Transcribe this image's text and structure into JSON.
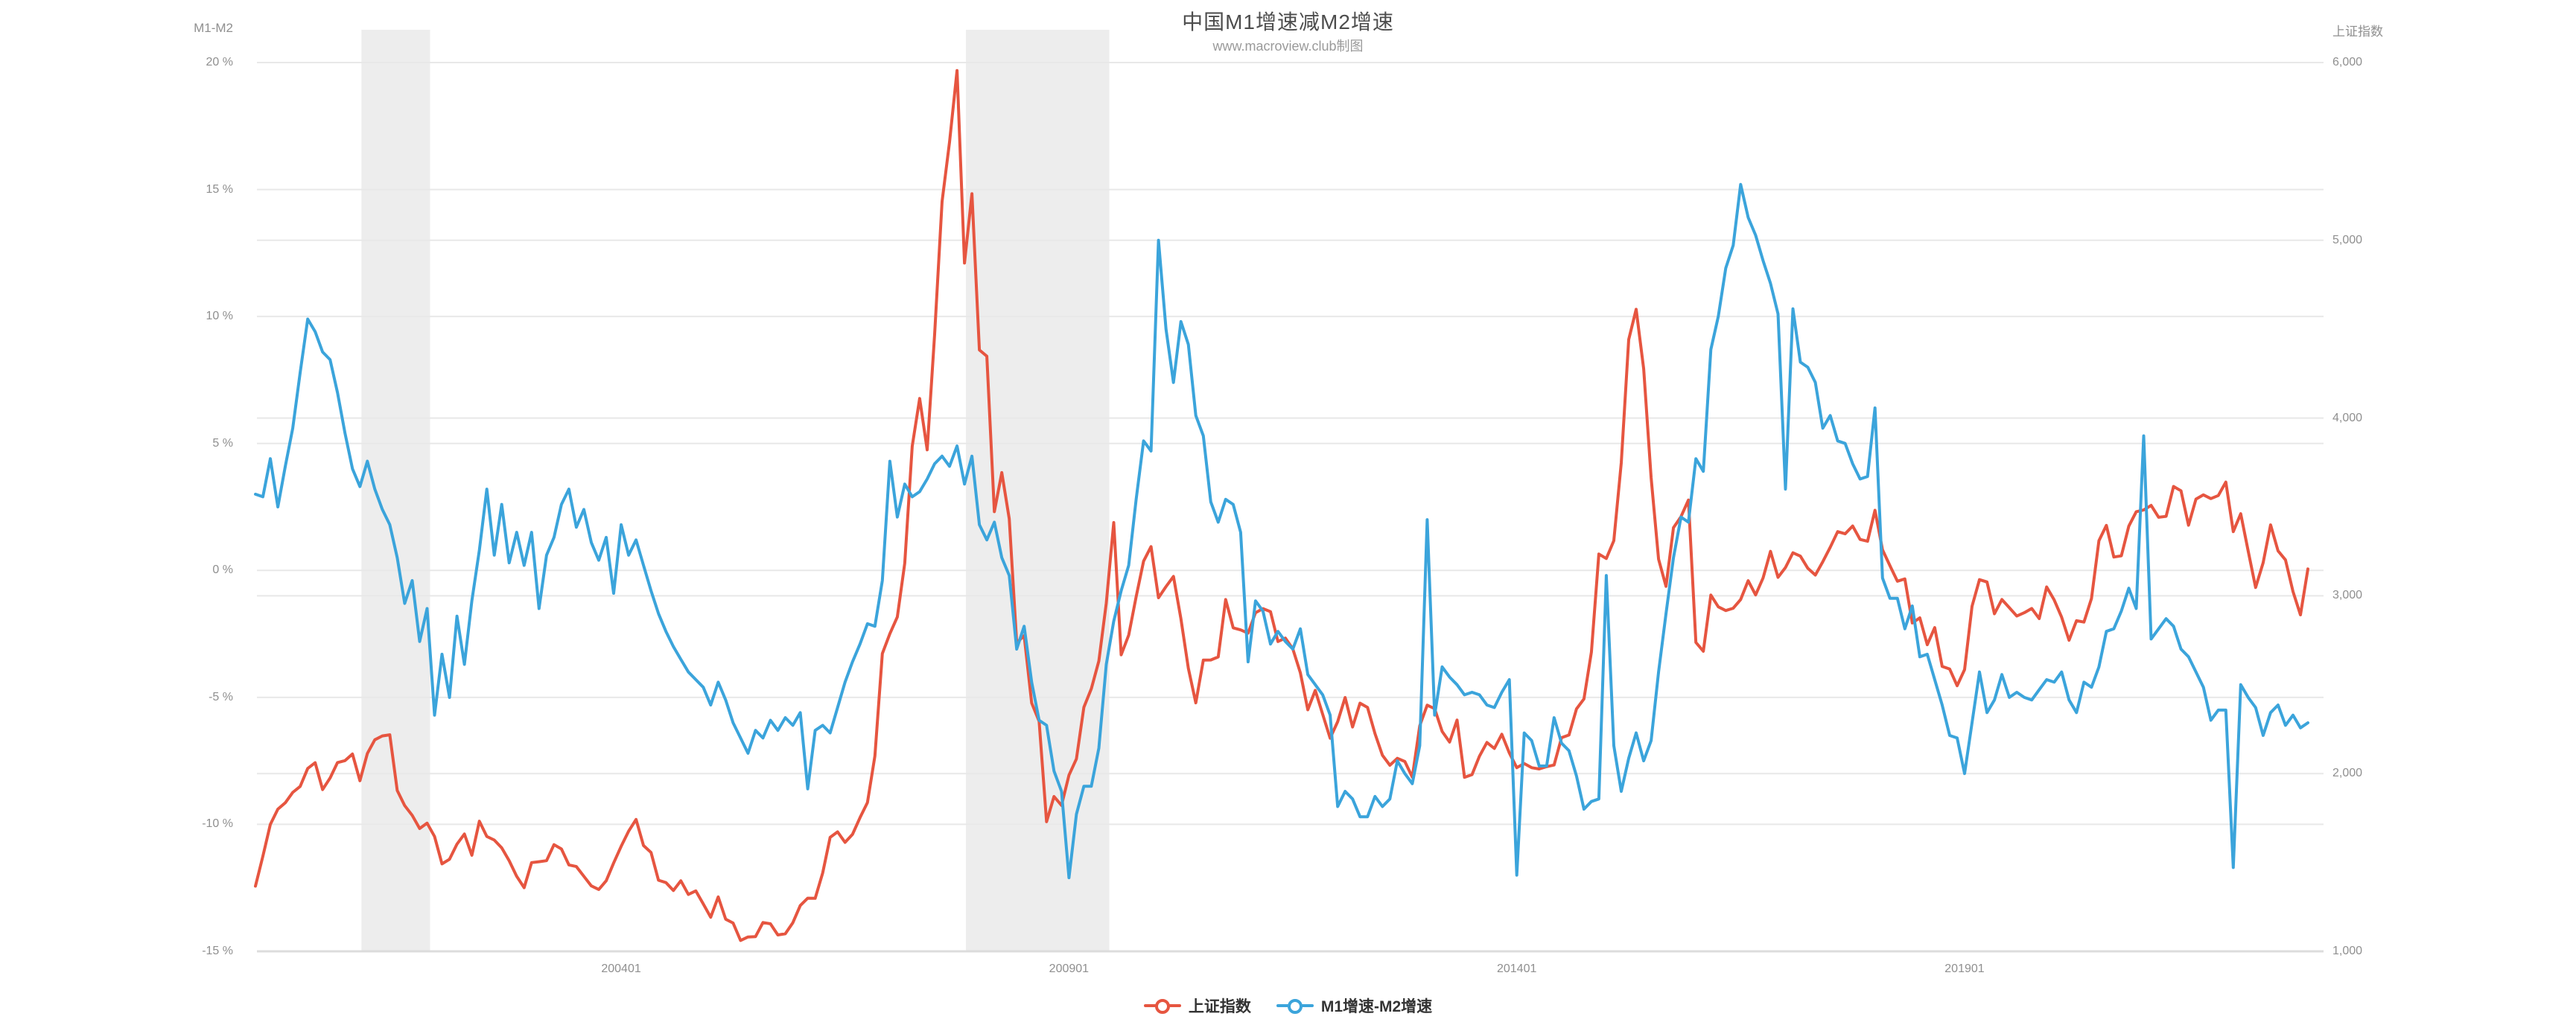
{
  "header": {
    "title": "中国M1增速减M2增速",
    "subtitle": "www.macroview.club制图"
  },
  "colors": {
    "sse_line": "#e65540",
    "m1m2_line": "#3ba4db",
    "gridline": "#e8e8e8",
    "recession_band": "#ededed",
    "x_axis_line": "#dcdcdc",
    "tick_text": "#8f8f8f",
    "title_text": "#4d4d4d",
    "subtitle_text": "#9a9a9a",
    "legend_text": "#333333"
  },
  "legend": [
    {
      "label": "上证指数",
      "color": "#e65540"
    },
    {
      "label": "M1增速-M2增速",
      "color": "#3ba4db"
    }
  ],
  "chart_data": {
    "type": "line",
    "title": "中国M1增速减M2增速",
    "subtitle": "www.macroview.club制图",
    "x_start": "1999-12",
    "frequency": "monthly",
    "grid": true,
    "legend_position": "bottom",
    "left_axis": {
      "title": "M1-M2",
      "unit": "%",
      "range": [
        -15,
        20
      ],
      "tick_values": [
        20,
        15,
        10,
        5,
        0,
        -5,
        -10,
        -15
      ],
      "tick_labels": [
        "20 %",
        "15 %",
        "10 %",
        "5 %",
        "0 %",
        "-5 %",
        "-10 %",
        "-15 %"
      ]
    },
    "right_axis": {
      "title": "上证指数",
      "range": [
        1000,
        6000
      ],
      "tick_values": [
        6000,
        5000,
        4000,
        3000,
        2000,
        1000
      ],
      "tick_labels": [
        "6,000",
        "5,000",
        "4,000",
        "3,000",
        "2,000",
        "1,000"
      ]
    },
    "x_axis": {
      "ticks": [
        {
          "label": "200401",
          "month_index": 49
        },
        {
          "label": "200901",
          "month_index": 109
        },
        {
          "label": "201401",
          "month_index": 169
        },
        {
          "label": "201901",
          "month_index": 229
        }
      ]
    },
    "recession_bands": [
      {
        "from": "2001-03",
        "to": "2001-11"
      },
      {
        "from": "2007-12",
        "to": "2009-06"
      }
    ],
    "series": [
      {
        "name": "上证指数",
        "axis": "right",
        "color": "#e65540",
        "values": [
          1367,
          1535,
          1714,
          1800,
          1836,
          1894,
          1928,
          2029,
          2061,
          1910,
          1975,
          2062,
          2073,
          2110,
          1960,
          2113,
          2190,
          2212,
          2218,
          1905,
          1820,
          1765,
          1691,
          1721,
          1646,
          1492,
          1518,
          1603,
          1660,
          1540,
          1732,
          1646,
          1626,
          1582,
          1510,
          1422,
          1358,
          1499,
          1504,
          1510,
          1600,
          1576,
          1486,
          1477,
          1422,
          1368,
          1348,
          1397,
          1497,
          1591,
          1676,
          1742,
          1595,
          1556,
          1400,
          1387,
          1342,
          1397,
          1320,
          1340,
          1267,
          1192,
          1306,
          1181,
          1159,
          1061,
          1081,
          1083,
          1162,
          1155,
          1092,
          1099,
          1161,
          1258,
          1299,
          1298,
          1441,
          1641,
          1672,
          1613,
          1658,
          1752,
          1837,
          2099,
          2675,
          2787,
          2881,
          3184,
          3841,
          4110,
          3821,
          4471,
          5218,
          5552,
          5955,
          4872,
          5262,
          4383,
          4348,
          3473,
          3693,
          3433,
          2736,
          2776,
          2397,
          2294,
          1729,
          1871,
          1821,
          1991,
          2083,
          2373,
          2477,
          2633,
          2959,
          3412,
          2668,
          2779,
          2995,
          3195,
          3277,
          2989,
          3052,
          3109,
          2871,
          2592,
          2398,
          2638,
          2639,
          2656,
          2979,
          2820,
          2808,
          2790,
          2905,
          2928,
          2911,
          2743,
          2762,
          2701,
          2567,
          2359,
          2468,
          2333,
          2199,
          2292,
          2428,
          2262,
          2396,
          2372,
          2225,
          2103,
          2047,
          2086,
          2068,
          1980,
          2269,
          2385,
          2365,
          2237,
          2177,
          2301,
          1979,
          1994,
          2098,
          2175,
          2141,
          2221,
          2116,
          2033,
          2056,
          2033,
          2026,
          2039,
          2048,
          2202,
          2217,
          2364,
          2420,
          2683,
          3235,
          3210,
          3310,
          3748,
          4442,
          4612,
          4277,
          3664,
          3206,
          3053,
          3383,
          3445,
          3539,
          2738,
          2688,
          3004,
          2938,
          2917,
          2930,
          2979,
          3085,
          3005,
          3100,
          3250,
          3104,
          3159,
          3242,
          3223,
          3155,
          3117,
          3192,
          3273,
          3361,
          3349,
          3393,
          3317,
          3307,
          3481,
          3259,
          3169,
          3082,
          3095,
          2847,
          2876,
          2725,
          2821,
          2603,
          2588,
          2494,
          2585,
          2941,
          3091,
          3078,
          2899,
          2979,
          2933,
          2886,
          2905,
          2929,
          2872,
          3050,
          2977,
          2880,
          2750,
          2860,
          2852,
          2985,
          3310,
          3396,
          3218,
          3225,
          3392,
          3473,
          3483,
          3509,
          3442,
          3447,
          3615,
          3591,
          3397,
          3544,
          3568,
          3547,
          3564,
          3640,
          3361,
          3462,
          3252,
          3047,
          3186,
          3399,
          3253,
          3202,
          3024,
          2893,
          3151
        ]
      },
      {
        "name": "M1增速-M2增速",
        "axis": "left",
        "color": "#3ba4db",
        "values": [
          3.0,
          2.9,
          4.4,
          2.5,
          4.1,
          5.6,
          7.8,
          9.9,
          9.4,
          8.6,
          8.3,
          7.0,
          5.4,
          4.0,
          3.3,
          4.3,
          3.2,
          2.4,
          1.8,
          0.5,
          -1.3,
          -0.4,
          -2.8,
          -1.5,
          -5.7,
          -3.3,
          -5.0,
          -1.8,
          -3.7,
          -1.2,
          0.8,
          3.2,
          0.6,
          2.6,
          0.3,
          1.5,
          0.2,
          1.5,
          -1.5,
          0.6,
          1.3,
          2.6,
          3.2,
          1.7,
          2.4,
          1.1,
          0.4,
          1.3,
          -0.9,
          1.8,
          0.6,
          1.2,
          0.2,
          -0.8,
          -1.7,
          -2.4,
          -3.0,
          -3.5,
          -4.0,
          -4.3,
          -4.6,
          -5.3,
          -4.4,
          -5.1,
          -6.0,
          -6.6,
          -7.2,
          -6.3,
          -6.6,
          -5.9,
          -6.3,
          -5.8,
          -6.1,
          -5.6,
          -8.6,
          -6.3,
          -6.1,
          -6.4,
          -5.4,
          -4.4,
          -3.6,
          -2.9,
          -2.1,
          -2.2,
          -0.4,
          4.3,
          2.1,
          3.4,
          2.9,
          3.1,
          3.6,
          4.2,
          4.5,
          4.1,
          4.9,
          3.4,
          4.5,
          1.8,
          1.2,
          1.9,
          0.5,
          -0.2,
          -3.1,
          -2.2,
          -4.4,
          -5.9,
          -6.1,
          -7.9,
          -8.7,
          -12.1,
          -9.6,
          -8.5,
          -8.5,
          -7.0,
          -3.7,
          -2.0,
          -0.8,
          0.2,
          2.8,
          5.1,
          4.7,
          13.0,
          9.5,
          7.4,
          9.8,
          8.9,
          6.1,
          5.3,
          2.7,
          1.9,
          2.8,
          2.6,
          1.5,
          -3.6,
          -1.2,
          -1.6,
          -2.9,
          -2.4,
          -2.8,
          -3.1,
          -2.3,
          -4.1,
          -4.5,
          -4.9,
          -5.7,
          -9.3,
          -8.7,
          -9.0,
          -9.7,
          -9.7,
          -8.9,
          -9.3,
          -9.0,
          -7.5,
          -8.0,
          -8.4,
          -6.9,
          2.0,
          -5.7,
          -3.8,
          -4.2,
          -4.5,
          -4.9,
          -4.8,
          -4.9,
          -5.3,
          -5.4,
          -4.8,
          -4.3,
          -12.0,
          -6.4,
          -6.7,
          -7.7,
          -7.7,
          -5.8,
          -6.8,
          -7.1,
          -8.1,
          -9.4,
          -9.1,
          -9.0,
          -0.2,
          -6.9,
          -8.7,
          -7.4,
          -6.4,
          -7.5,
          -6.7,
          -4.0,
          -1.7,
          0.5,
          2.1,
          1.9,
          4.4,
          3.9,
          8.7,
          10.0,
          11.9,
          12.8,
          15.2,
          13.9,
          13.2,
          12.2,
          11.3,
          10.1,
          3.2,
          10.3,
          8.2,
          8.0,
          7.4,
          5.6,
          6.1,
          5.1,
          5.0,
          4.2,
          3.6,
          3.7,
          6.4,
          -0.3,
          -1.1,
          -1.1,
          -2.3,
          -1.4,
          -3.4,
          -3.3,
          -4.3,
          -5.3,
          -6.5,
          -6.6,
          -8.0,
          -6.0,
          -4.0,
          -5.6,
          -5.1,
          -4.1,
          -5.0,
          -4.8,
          -5.0,
          -5.1,
          -4.7,
          -4.3,
          -4.4,
          -4.0,
          -5.1,
          -5.6,
          -4.4,
          -4.6,
          -3.8,
          -2.4,
          -2.3,
          -1.6,
          -0.7,
          -1.5,
          5.3,
          -2.7,
          -2.3,
          -1.9,
          -2.2,
          -3.1,
          -3.4,
          -4.0,
          -4.6,
          -5.9,
          -5.5,
          -5.5,
          -11.7,
          -4.5,
          -5.0,
          -5.4,
          -6.5,
          -5.6,
          -5.3,
          -6.1,
          -5.7,
          -6.2,
          -6.0
        ]
      }
    ]
  }
}
